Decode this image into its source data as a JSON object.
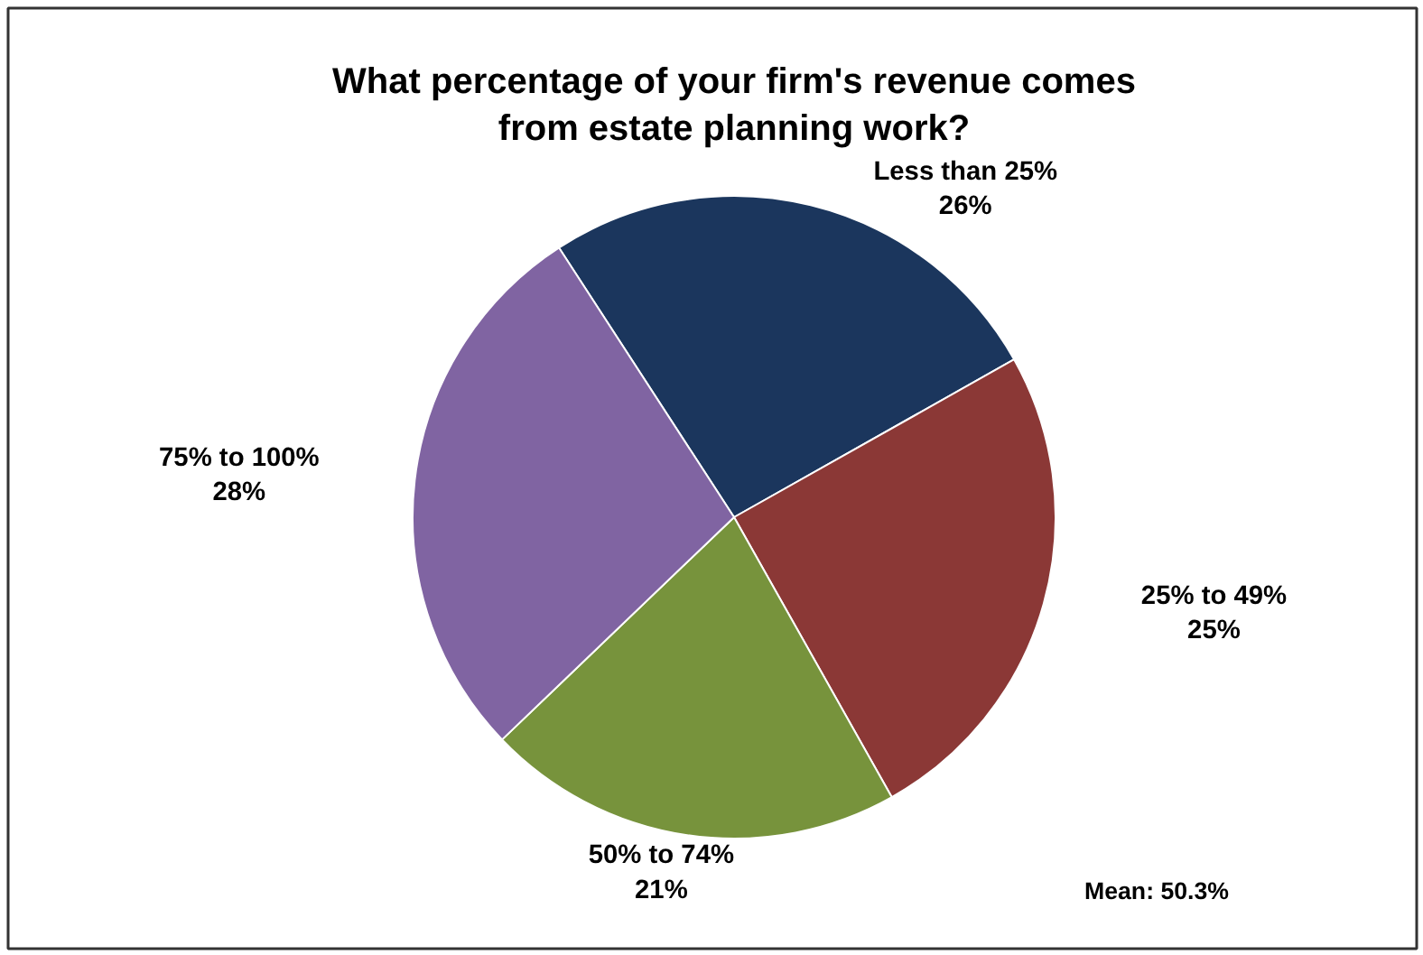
{
  "chart_data": {
    "type": "pie",
    "title": "What percentage of your firm's revenue comes\nfrom estate planning work?",
    "categories": [
      "Less than 25%",
      "25% to 49%",
      "50% to 74%",
      "75% to 100%"
    ],
    "values": [
      26,
      25,
      21,
      28
    ],
    "value_labels": [
      "26%",
      "25%",
      "21%",
      "28%"
    ],
    "colors": [
      "#1b365d",
      "#8b3836",
      "#77933c",
      "#8064a2"
    ],
    "annotations": [
      "Mean: 50.3%"
    ]
  }
}
